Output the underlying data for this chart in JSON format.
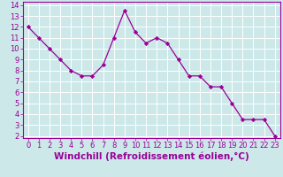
{
  "x": [
    0,
    1,
    2,
    3,
    4,
    5,
    6,
    7,
    8,
    9,
    10,
    11,
    12,
    13,
    14,
    15,
    16,
    17,
    18,
    19,
    20,
    21,
    22,
    23
  ],
  "y": [
    12,
    11,
    10,
    9,
    8,
    7.5,
    7.5,
    8.5,
    11,
    13.5,
    11.5,
    10.5,
    11,
    10.5,
    9,
    7.5,
    7.5,
    6.5,
    6.5,
    5,
    3.5,
    3.5,
    3.5,
    2
  ],
  "line_color": "#990099",
  "marker_color": "#990099",
  "bg_color": "#cce8e8",
  "grid_color": "#ffffff",
  "axis_label_color": "#990099",
  "xlabel": "Windchill (Refroidissement éolien,°C)",
  "ylim_min": 1.8,
  "ylim_max": 14.3,
  "xlim_min": -0.5,
  "xlim_max": 23.5,
  "yticks": [
    2,
    3,
    4,
    5,
    6,
    7,
    8,
    9,
    10,
    11,
    12,
    13,
    14
  ],
  "xticks": [
    0,
    1,
    2,
    3,
    4,
    5,
    6,
    7,
    8,
    9,
    10,
    11,
    12,
    13,
    14,
    15,
    16,
    17,
    18,
    19,
    20,
    21,
    22,
    23
  ],
  "tick_label_color": "#990099",
  "tick_fontsize": 6,
  "xlabel_fontsize": 7.5,
  "spine_color": "#990099",
  "bottom_bar_color": "#9900aa"
}
